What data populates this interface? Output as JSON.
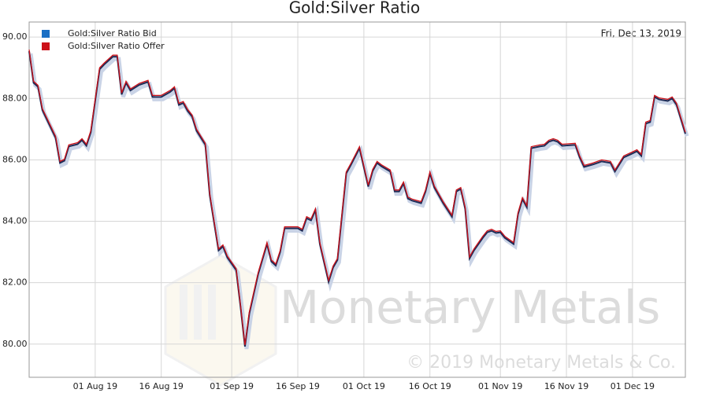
{
  "chart_data": {
    "type": "line",
    "title": "Gold:Silver Ratio",
    "annotation": "Fri, Dec 13, 2019",
    "watermark": "Monetary Metals",
    "copyright": "© 2019 Monetary Metals & Co.",
    "grid": true,
    "legend": "top-left",
    "xlim": [
      "2019-07-17",
      "2019-12-13"
    ],
    "xticks": [
      {
        "value": "2019-08-01",
        "label": "01 Aug 19"
      },
      {
        "value": "2019-08-16",
        "label": "16 Aug 19"
      },
      {
        "value": "2019-09-01",
        "label": "01 Sep 19"
      },
      {
        "value": "2019-09-16",
        "label": "16 Sep 19"
      },
      {
        "value": "2019-10-01",
        "label": "01 Oct 19"
      },
      {
        "value": "2019-10-16",
        "label": "16 Oct 19"
      },
      {
        "value": "2019-11-01",
        "label": "01 Nov 19"
      },
      {
        "value": "2019-11-16",
        "label": "16 Nov 19"
      },
      {
        "value": "2019-12-01",
        "label": "01 Dec 19"
      }
    ],
    "ylim": [
      78.92,
      90.49
    ],
    "yticks": [
      {
        "value": 80,
        "label": "80.00"
      },
      {
        "value": 82,
        "label": "82.00"
      },
      {
        "value": 84,
        "label": "84.00"
      },
      {
        "value": 86,
        "label": "86.00"
      },
      {
        "value": 88,
        "label": "88.00"
      },
      {
        "value": 90,
        "label": "90.00"
      }
    ],
    "x": [
      "2019-07-17",
      "2019-07-18",
      "2019-07-19",
      "2019-07-20",
      "2019-07-23",
      "2019-07-24",
      "2019-07-25",
      "2019-07-26",
      "2019-07-28",
      "2019-07-29",
      "2019-07-30",
      "2019-07-31",
      "2019-08-02",
      "2019-08-03",
      "2019-08-05",
      "2019-08-06",
      "2019-08-07",
      "2019-08-08",
      "2019-08-09",
      "2019-08-11",
      "2019-08-13",
      "2019-08-14",
      "2019-08-16",
      "2019-08-18",
      "2019-08-19",
      "2019-08-20",
      "2019-08-21",
      "2019-08-22",
      "2019-08-23",
      "2019-08-24",
      "2019-08-26",
      "2019-08-27",
      "2019-08-29",
      "2019-08-30",
      "2019-08-31",
      "2019-09-02",
      "2019-09-03",
      "2019-09-04",
      "2019-09-05",
      "2019-09-07",
      "2019-09-09",
      "2019-09-10",
      "2019-09-11",
      "2019-09-12",
      "2019-09-13",
      "2019-09-16",
      "2019-09-17",
      "2019-09-18",
      "2019-09-19",
      "2019-09-20",
      "2019-09-21",
      "2019-09-23",
      "2019-09-24",
      "2019-09-25",
      "2019-09-27",
      "2019-09-28",
      "2019-09-30",
      "2019-10-02",
      "2019-10-03",
      "2019-10-04",
      "2019-10-05",
      "2019-10-07",
      "2019-10-08",
      "2019-10-09",
      "2019-10-10",
      "2019-10-11",
      "2019-10-12",
      "2019-10-14",
      "2019-10-15",
      "2019-10-16",
      "2019-10-17",
      "2019-10-19",
      "2019-10-21",
      "2019-10-22",
      "2019-10-23",
      "2019-10-24",
      "2019-10-25",
      "2019-10-26",
      "2019-10-28",
      "2019-10-29",
      "2019-10-30",
      "2019-10-31",
      "2019-11-01",
      "2019-11-02",
      "2019-11-04",
      "2019-11-05",
      "2019-11-06",
      "2019-11-07",
      "2019-11-08",
      "2019-11-10",
      "2019-11-11",
      "2019-11-12",
      "2019-11-13",
      "2019-11-14",
      "2019-11-15",
      "2019-11-18",
      "2019-11-19",
      "2019-11-20",
      "2019-11-22",
      "2019-11-24",
      "2019-11-26",
      "2019-11-27",
      "2019-11-29",
      "2019-12-01",
      "2019-12-02",
      "2019-12-03",
      "2019-12-04",
      "2019-12-05",
      "2019-12-06",
      "2019-12-07",
      "2019-12-09",
      "2019-12-10",
      "2019-12-11",
      "2019-12-13"
    ],
    "series": [
      {
        "name": "Gold:Silver Ratio Bid",
        "color": "#1a6fc4",
        "values": [
          89.54,
          88.51,
          88.38,
          87.62,
          86.72,
          85.9,
          85.97,
          86.44,
          86.51,
          86.64,
          86.46,
          86.9,
          88.95,
          89.1,
          89.36,
          89.36,
          88.13,
          88.51,
          88.26,
          88.44,
          88.54,
          88.05,
          88.05,
          88.21,
          88.33,
          87.79,
          87.85,
          87.59,
          87.41,
          86.95,
          86.49,
          84.85,
          83.05,
          83.18,
          82.82,
          82.41,
          81.21,
          79.92,
          81,
          82.28,
          83.26,
          82.69,
          82.56,
          83,
          83.77,
          83.77,
          83.69,
          84.1,
          84.03,
          84.36,
          83.26,
          82.03,
          82.49,
          82.74,
          85.56,
          85.82,
          86.38,
          85.13,
          85.64,
          85.9,
          85.79,
          85.62,
          84.97,
          84.97,
          85.23,
          84.74,
          84.67,
          84.59,
          84.97,
          85.56,
          85.1,
          84.59,
          84.15,
          84.97,
          85.05,
          84.41,
          82.79,
          83.05,
          83.46,
          83.64,
          83.69,
          83.62,
          83.64,
          83.46,
          83.26,
          84.23,
          84.72,
          84.46,
          86.38,
          86.44,
          86.46,
          86.59,
          86.64,
          86.59,
          86.46,
          86.49,
          86.08,
          85.77,
          85.85,
          85.95,
          85.9,
          85.62,
          86.08,
          86.21,
          86.28,
          86.13,
          87.18,
          87.23,
          88.05,
          87.97,
          87.92,
          88,
          87.79,
          86.85
        ]
      },
      {
        "name": "Gold:Silver Ratio Offer",
        "color": "#cc1119",
        "values": [
          89.59,
          88.56,
          88.43,
          87.67,
          86.77,
          85.95,
          86.02,
          86.49,
          86.56,
          86.69,
          86.51,
          86.95,
          89,
          89.15,
          89.41,
          89.41,
          88.18,
          88.56,
          88.31,
          88.49,
          88.59,
          88.1,
          88.1,
          88.26,
          88.38,
          87.84,
          87.9,
          87.64,
          87.46,
          87,
          86.54,
          84.9,
          83.1,
          83.23,
          82.87,
          82.46,
          81.26,
          79.97,
          81.05,
          82.33,
          83.31,
          82.74,
          82.61,
          83.05,
          83.82,
          83.82,
          83.74,
          84.15,
          84.08,
          84.41,
          83.31,
          82.08,
          82.54,
          82.79,
          85.61,
          85.87,
          86.43,
          85.18,
          85.69,
          85.95,
          85.84,
          85.67,
          85.02,
          85.02,
          85.28,
          84.79,
          84.72,
          84.64,
          85.02,
          85.61,
          85.15,
          84.64,
          84.2,
          85.02,
          85.1,
          84.46,
          82.84,
          83.1,
          83.51,
          83.69,
          83.74,
          83.67,
          83.69,
          83.51,
          83.31,
          84.28,
          84.77,
          84.51,
          86.43,
          86.49,
          86.51,
          86.64,
          86.69,
          86.64,
          86.51,
          86.54,
          86.13,
          85.82,
          85.9,
          86,
          85.95,
          85.67,
          86.13,
          86.26,
          86.33,
          86.18,
          87.23,
          87.28,
          88.1,
          88.02,
          87.97,
          88.05,
          87.84,
          86.9
        ]
      }
    ]
  }
}
